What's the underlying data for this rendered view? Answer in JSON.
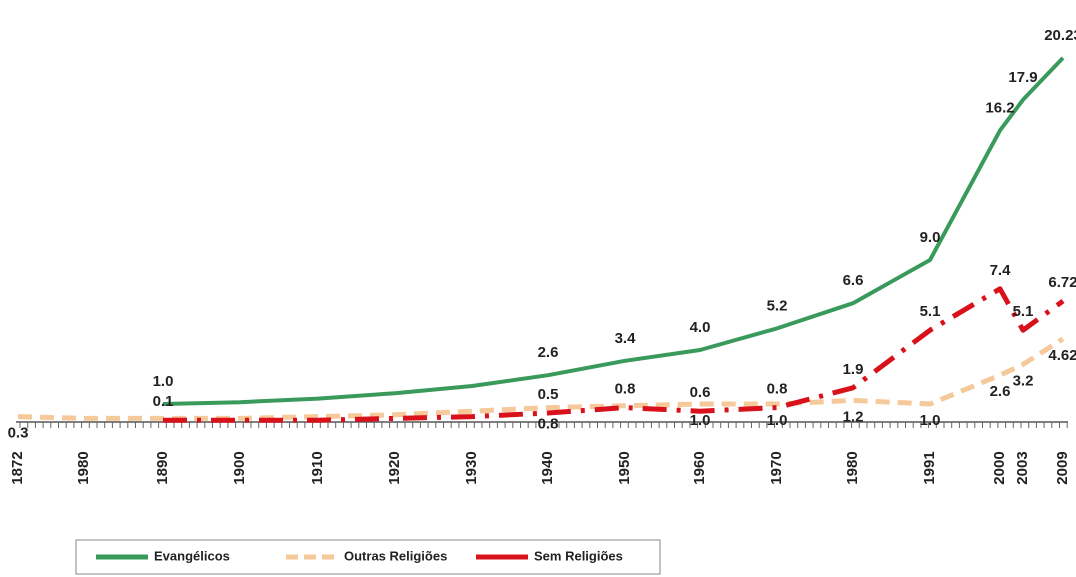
{
  "chart_data": {
    "type": "line",
    "categories": [
      "1872",
      "1980",
      "1890",
      "1900",
      "1910",
      "1920",
      "1930",
      "1940",
      "1950",
      "1960",
      "1970",
      "1980",
      "1991",
      "2000",
      "2003",
      "2009"
    ],
    "ylim": [
      0,
      21
    ],
    "series": [
      {
        "name": "Evangélicos",
        "color": "#3a9a5c",
        "values": [
          null,
          null,
          1.0,
          1.1,
          1.3,
          1.6,
          2.0,
          2.6,
          3.4,
          4.0,
          5.2,
          6.6,
          9.0,
          16.2,
          17.9,
          20.23
        ],
        "value_labels": [
          null,
          null,
          "1.0",
          null,
          null,
          null,
          null,
          "2.6",
          "3.4",
          "4.0",
          "5.2",
          "6.6",
          "9.0",
          "16.2",
          "17.9",
          "20.23"
        ]
      },
      {
        "name": "Outras Religiões",
        "color": "#f5c99a",
        "values": [
          0.3,
          0.2,
          0.2,
          0.2,
          0.3,
          0.4,
          0.6,
          0.8,
          0.9,
          1.0,
          1.0,
          1.2,
          1.0,
          2.6,
          3.2,
          4.62
        ],
        "value_labels": [
          "0.3",
          null,
          null,
          null,
          null,
          null,
          null,
          "0.8",
          null,
          "1.0",
          "1.0",
          "1.2",
          "1.0",
          "2.6",
          "3.2",
          "4.62"
        ]
      },
      {
        "name": "Sem Religiões",
        "color": "#d9111a",
        "values": [
          null,
          null,
          0.1,
          0.1,
          0.1,
          0.2,
          0.3,
          0.5,
          0.8,
          0.6,
          0.8,
          1.9,
          5.1,
          7.4,
          5.1,
          6.72
        ],
        "value_labels": [
          null,
          null,
          "0.1",
          null,
          null,
          null,
          null,
          "0.5",
          "0.8",
          "0.6",
          "0.8",
          "1.9",
          "5.1",
          "7.4",
          "5.1",
          "6.72"
        ]
      }
    ]
  }
}
